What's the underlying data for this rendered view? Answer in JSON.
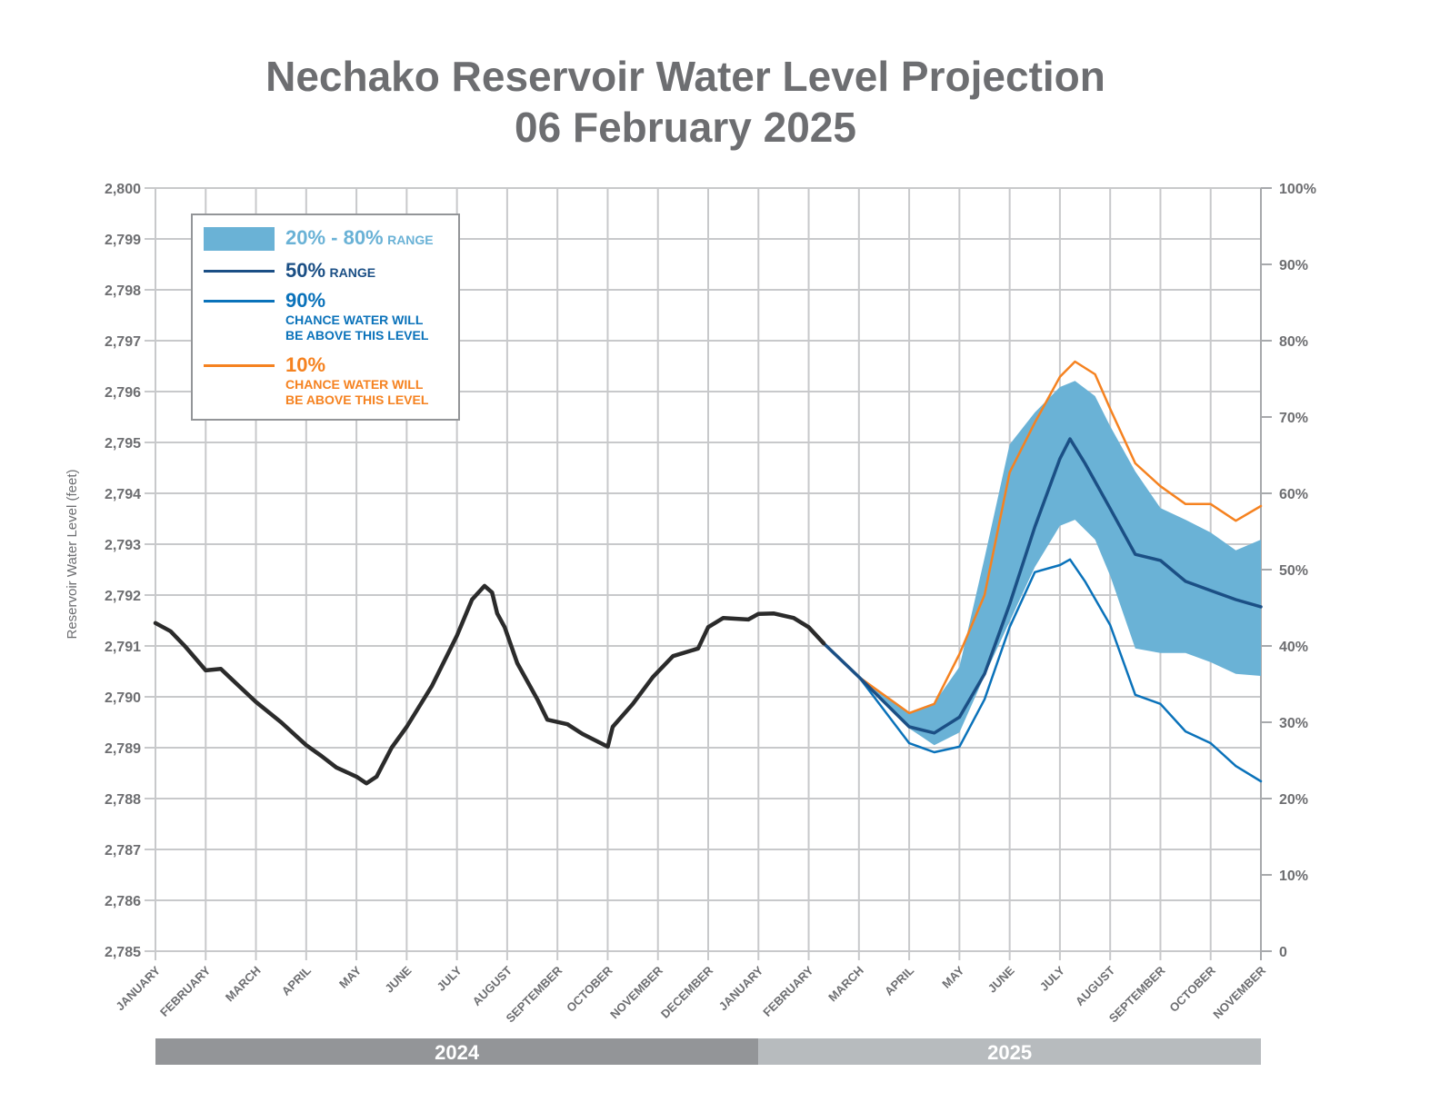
{
  "chart_data": {
    "type": "line",
    "title": "Nechako Reservoir Water Level Projection",
    "subtitle": "06 February 2025",
    "ylabel": "Reservoir Water Level (feet)",
    "ylim": [
      2785,
      2800
    ],
    "yticks": [
      "2,800",
      "2,799",
      "2,798",
      "2,797",
      "2,796",
      "2,795",
      "2,794",
      "2,793",
      "2,792",
      "2,791",
      "2,790",
      "2,789",
      "2,788",
      "2,787",
      "2,786",
      "2,785"
    ],
    "ytick_values": [
      2800,
      2799,
      2798,
      2797,
      2796,
      2795,
      2794,
      2793,
      2792,
      2791,
      2790,
      2789,
      2788,
      2787,
      2786,
      2785
    ],
    "y2ticks": [
      "100%",
      "90%",
      "80%",
      "70%",
      "60%",
      "50%",
      "40%",
      "30%",
      "20%",
      "10%",
      "0"
    ],
    "y2lim": [
      0,
      100
    ],
    "x_unit": "month index from January 2024 (0) to November 2025 (22)",
    "xlim": [
      0,
      22
    ],
    "categories": [
      "JANUARY",
      "FEBRUARY",
      "MARCH",
      "APRIL",
      "MAY",
      "JUNE",
      "JULY",
      "AUGUST",
      "SEPTEMBER",
      "OCTOBER",
      "NOVEMBER",
      "DECEMBER",
      "JANUARY",
      "FEBRUARY",
      "MARCH",
      "APRIL",
      "MAY",
      "JUNE",
      "JULY",
      "AUGUST",
      "SEPTEMBER",
      "OCTOBER",
      "NOVEMBER"
    ],
    "years": [
      {
        "label": "2024",
        "start": 0,
        "end": 12,
        "color": "#939598"
      },
      {
        "label": "2025",
        "start": 12,
        "end": 22,
        "color": "#b7bbbe"
      }
    ],
    "grid": true,
    "legend_position": "top-left",
    "legend": [
      {
        "key": "band",
        "label": "20% - 80%",
        "suffix": "RANGE",
        "color": "#6ab2d6"
      },
      {
        "key": "p50",
        "label": "50%",
        "suffix": "RANGE",
        "color": "#1b4f85"
      },
      {
        "key": "p90",
        "label": "90%",
        "sub1": "CHANCE WATER WILL",
        "sub2": "BE ABOVE THIS LEVEL",
        "color": "#0a72ba"
      },
      {
        "key": "p10",
        "label": "10%",
        "sub1": "CHANCE WATER WILL",
        "sub2": "BE ABOVE THIS LEVEL",
        "color": "#f58220"
      }
    ],
    "series": [
      {
        "name": "Historical",
        "color": "#2b2b2b",
        "x": [
          0,
          0.3,
          0.6,
          1.0,
          1.3,
          1.6,
          2.0,
          2.5,
          3.0,
          3.3,
          3.6,
          4.0,
          4.2,
          4.4,
          4.7,
          5.0,
          5.5,
          6.0,
          6.3,
          6.55,
          6.7,
          6.8,
          6.95,
          7.2,
          7.6,
          7.8,
          8.2,
          8.5,
          9.0,
          9.1,
          9.5,
          9.9,
          10.3,
          10.8,
          11.0,
          11.3,
          11.8,
          12.0,
          12.3,
          12.7,
          13.0,
          13.3
        ],
        "values": [
          2791.45,
          2791.29,
          2790.98,
          2790.52,
          2790.55,
          2790.27,
          2789.9,
          2789.5,
          2789.05,
          2788.84,
          2788.61,
          2788.43,
          2788.3,
          2788.43,
          2789.0,
          2789.41,
          2790.21,
          2791.2,
          2791.91,
          2792.18,
          2792.05,
          2791.64,
          2791.37,
          2790.66,
          2789.95,
          2789.55,
          2789.46,
          2789.27,
          2789.02,
          2789.41,
          2789.86,
          2790.39,
          2790.8,
          2790.95,
          2791.37,
          2791.55,
          2791.52,
          2791.63,
          2791.64,
          2791.55,
          2791.37,
          2791.05
        ]
      },
      {
        "name": "50%",
        "color": "#1b4f85",
        "x": [
          13.3,
          14.0,
          15.0,
          15.5,
          16.0,
          16.5,
          17.0,
          17.5,
          18.0,
          18.2,
          18.5,
          19.0,
          19.5,
          20.0,
          20.5,
          21.0,
          21.5,
          22.0
        ],
        "values": [
          2791.05,
          2790.39,
          2789.41,
          2789.29,
          2789.6,
          2790.45,
          2791.82,
          2793.34,
          2794.68,
          2795.07,
          2794.59,
          2793.7,
          2792.8,
          2792.68,
          2792.27,
          2792.09,
          2791.91,
          2791.77
        ]
      },
      {
        "name": "10%",
        "color": "#f58220",
        "x": [
          13.3,
          14.0,
          15.0,
          15.5,
          16.0,
          16.5,
          17.0,
          17.5,
          18.0,
          18.3,
          18.7,
          19.0,
          19.5,
          20.0,
          20.5,
          21.0,
          21.5,
          22.0
        ],
        "values": [
          2791.05,
          2790.39,
          2789.68,
          2789.86,
          2790.84,
          2792.0,
          2794.41,
          2795.39,
          2796.29,
          2796.59,
          2796.34,
          2795.66,
          2794.59,
          2794.14,
          2793.79,
          2793.79,
          2793.46,
          2793.75
        ]
      },
      {
        "name": "90%",
        "color": "#0a72ba",
        "x": [
          13.3,
          14.0,
          15.0,
          15.5,
          16.0,
          16.5,
          17.0,
          17.5,
          18.0,
          18.2,
          18.5,
          19.0,
          19.5,
          20.0,
          20.5,
          21.0,
          21.5,
          22.0
        ],
        "values": [
          2791.05,
          2790.39,
          2789.09,
          2788.91,
          2789.02,
          2789.95,
          2791.37,
          2792.45,
          2792.59,
          2792.7,
          2792.27,
          2791.41,
          2790.04,
          2789.86,
          2789.32,
          2789.09,
          2788.64,
          2788.34
        ]
      }
    ],
    "band": {
      "name": "20% - 80%",
      "color": "#6ab2d6",
      "x": [
        14.0,
        15.0,
        15.5,
        16.0,
        16.5,
        17.0,
        17.5,
        18.0,
        18.3,
        18.7,
        19.0,
        19.5,
        20.0,
        20.5,
        21.0,
        21.5,
        22.0
      ],
      "upper": [
        2790.39,
        2789.7,
        2789.88,
        2790.59,
        2792.73,
        2794.96,
        2795.59,
        2796.09,
        2796.21,
        2795.91,
        2795.32,
        2794.43,
        2793.71,
        2793.48,
        2793.23,
        2792.88,
        2793.09
      ],
      "lower": [
        2790.39,
        2789.38,
        2789.05,
        2789.3,
        2790.41,
        2791.48,
        2792.55,
        2793.36,
        2793.48,
        2793.09,
        2792.38,
        2790.95,
        2790.86,
        2790.86,
        2790.68,
        2790.45,
        2790.41
      ]
    }
  }
}
